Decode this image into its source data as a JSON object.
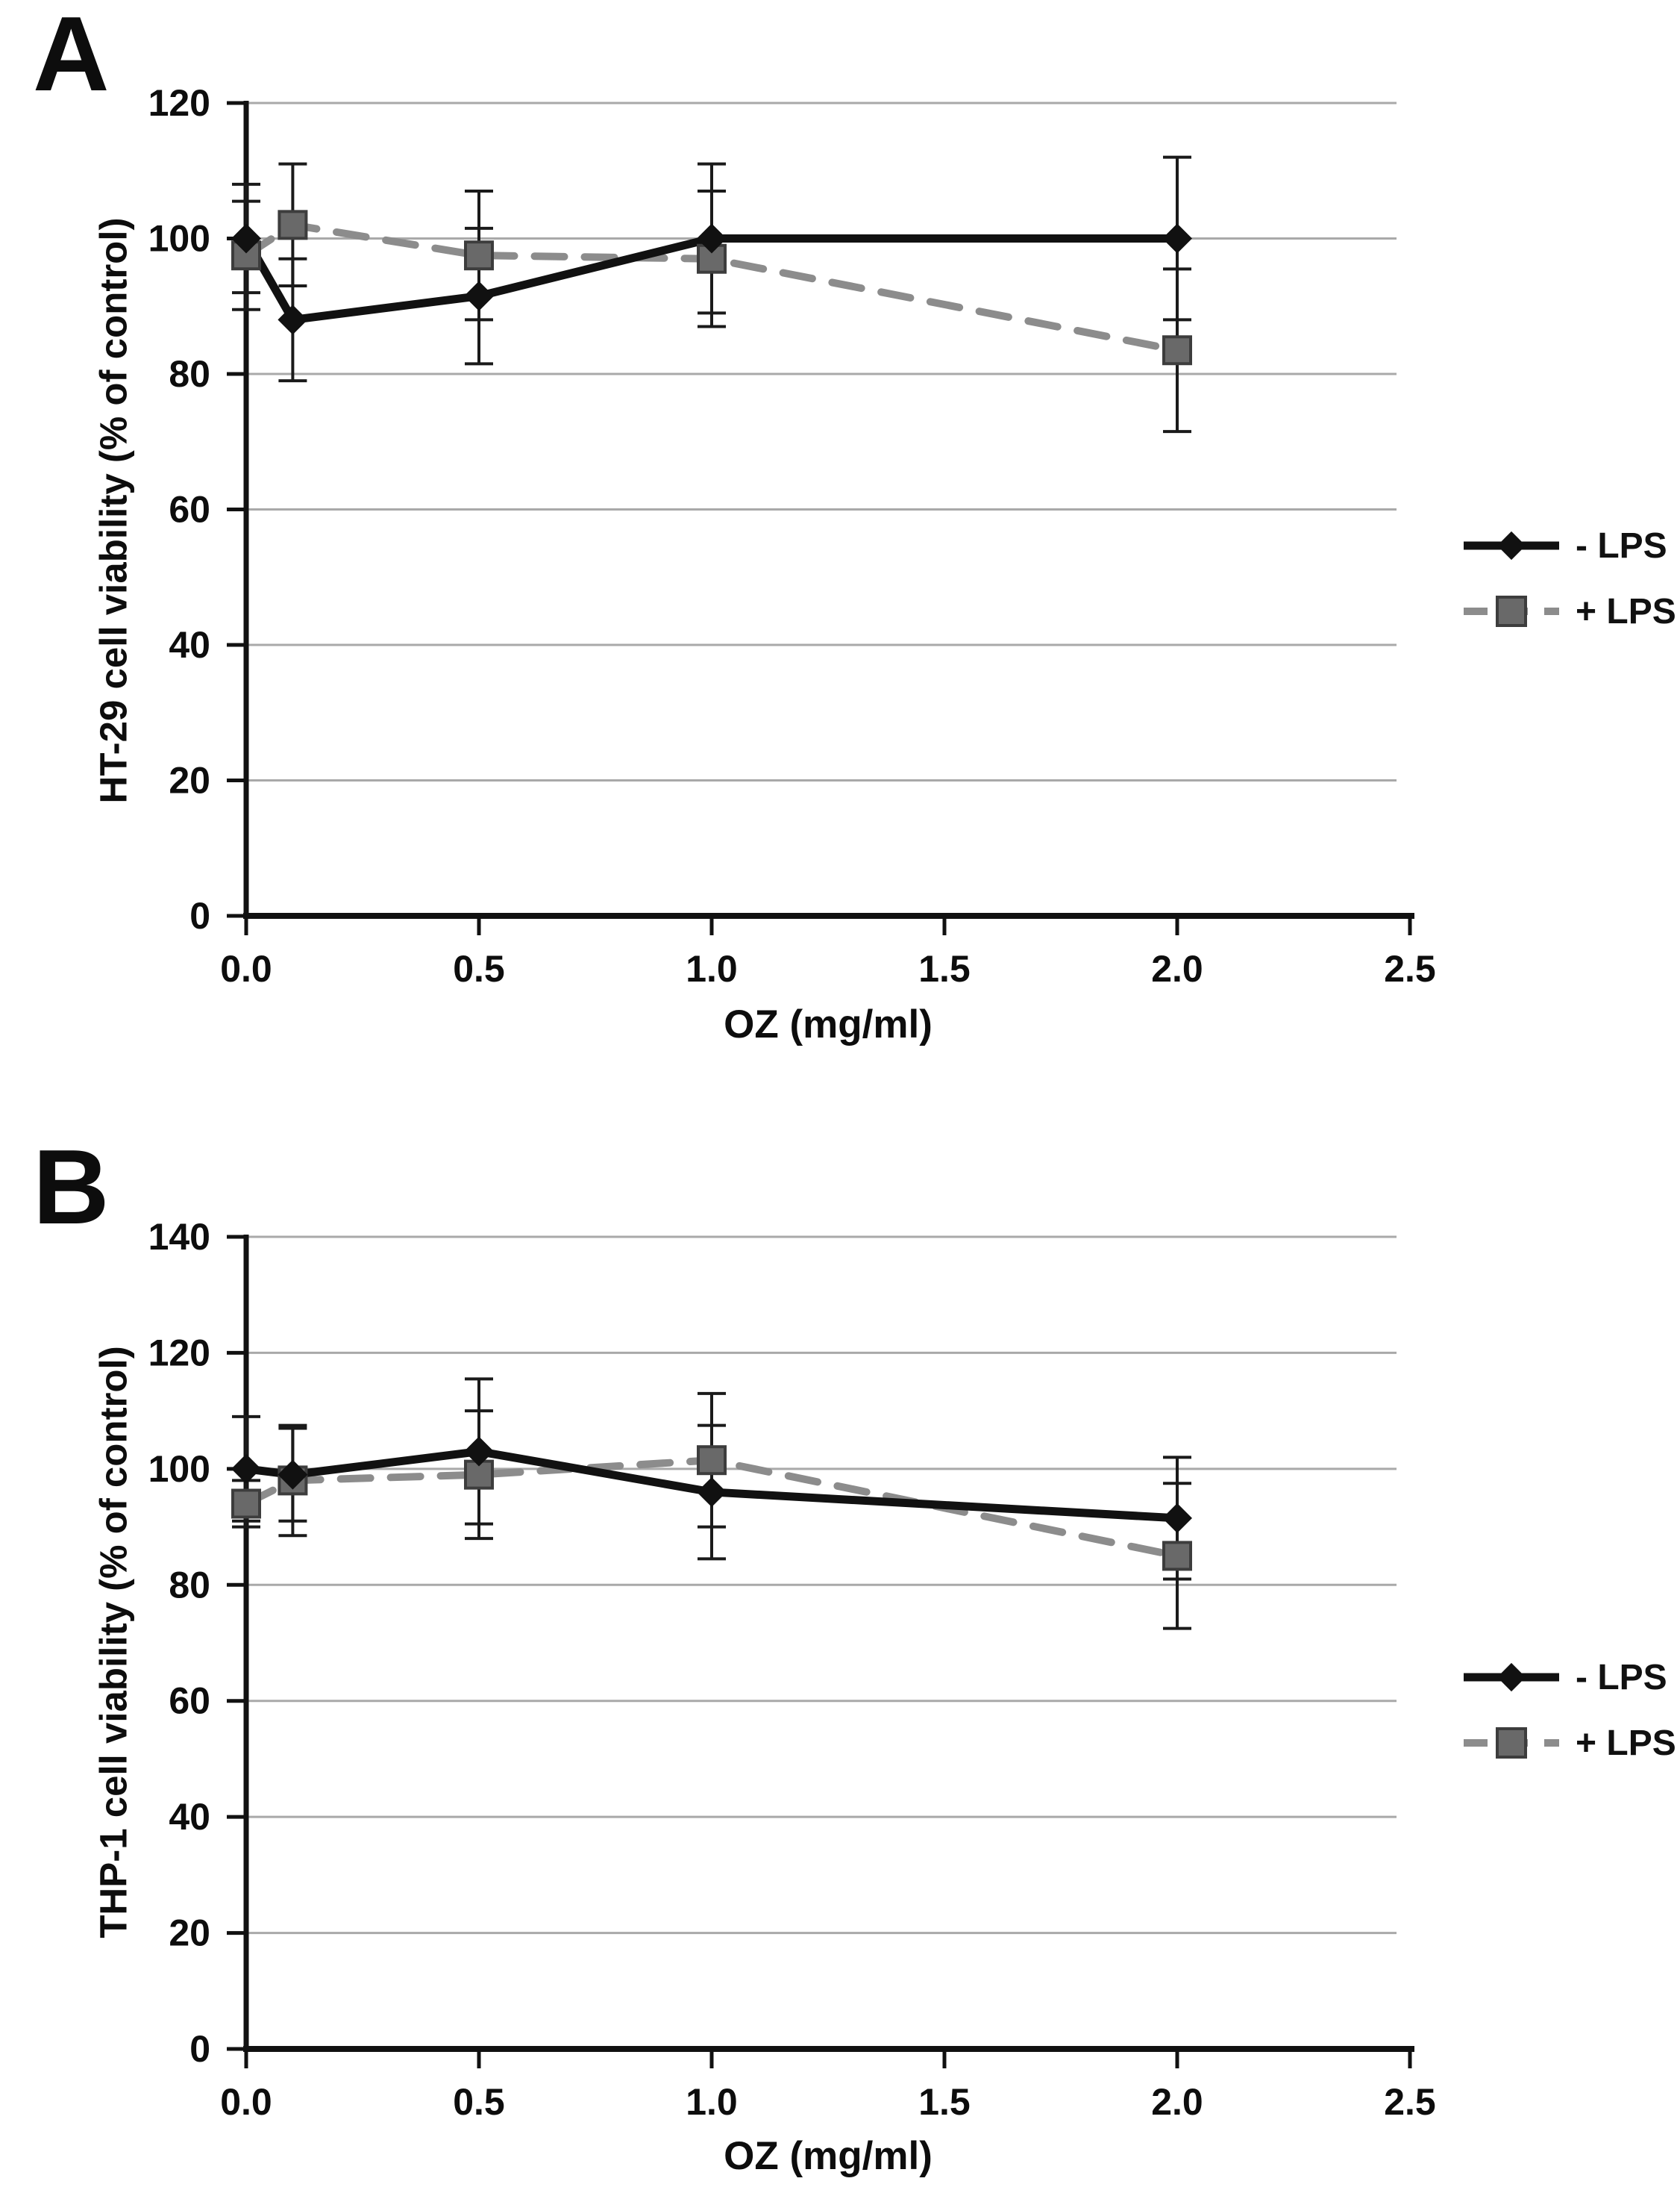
{
  "figure_title": "",
  "style_colors": {
    "axis": "#111111",
    "gridline": "#a9a9a9",
    "error_bar": "#1a1a1a",
    "minus_lps_line": "#111111",
    "plus_lps_line": "#8c8c8c",
    "plus_lps_marker_fill": "#696969",
    "plus_lps_marker_border": "#3d3d3d"
  },
  "chart_data": [
    {
      "type": "line",
      "panel_label": "A",
      "title": "",
      "xlabel": "OZ (mg/ml)",
      "ylabel": "HT-29 cell viability (% of control)",
      "xlim": [
        0,
        2.5
      ],
      "ylim": [
        0,
        120
      ],
      "x_ticks": [
        0,
        0.5,
        1.0,
        1.5,
        2.0,
        2.5
      ],
      "x_tick_labels": [
        "0.0",
        "0.5",
        "1.0",
        "1.5",
        "2.0",
        "2.5"
      ],
      "y_ticks": [
        0,
        20,
        40,
        60,
        80,
        100,
        120
      ],
      "grid": "horizontal gridlines on",
      "legend_position": "right of plot, middle",
      "x": [
        0,
        0.1,
        0.5,
        1.0,
        2.0
      ],
      "series": [
        {
          "name": "- LPS",
          "marker": "diamond",
          "line_style": "solid",
          "color": "#111111",
          "values": [
            100,
            88,
            91.5,
            100,
            100
          ],
          "errors": [
            8,
            9,
            10,
            11,
            12
          ]
        },
        {
          "name": "+ LPS",
          "marker": "square",
          "line_style": "dashed",
          "color": "#8c8c8c",
          "values": [
            97.5,
            102,
            97.5,
            97,
            83.5
          ],
          "errors": [
            8,
            9,
            9.5,
            10,
            12
          ]
        }
      ]
    },
    {
      "type": "line",
      "panel_label": "B",
      "title": "",
      "xlabel": "OZ (mg/ml)",
      "ylabel": "THP-1 cell viability (% of control)",
      "xlim": [
        0,
        2.5
      ],
      "ylim": [
        0,
        140
      ],
      "x_ticks": [
        0,
        0.5,
        1.0,
        1.5,
        2.0,
        2.5
      ],
      "x_tick_labels": [
        "0.0",
        "0.5",
        "1.0",
        "1.5",
        "2.0",
        "2.5"
      ],
      "y_ticks": [
        0,
        20,
        40,
        60,
        80,
        100,
        120,
        140
      ],
      "grid": "horizontal gridlines on",
      "legend_position": "right of plot, lower",
      "x": [
        0,
        0.1,
        0.5,
        1.0,
        2.0
      ],
      "series": [
        {
          "name": "- LPS",
          "marker": "diamond",
          "line_style": "solid",
          "color": "#111111",
          "values": [
            100,
            99,
            103,
            96,
            91.5
          ],
          "errors": [
            9,
            8,
            12.5,
            11.5,
            10.5
          ]
        },
        {
          "name": "+ LPS",
          "marker": "square",
          "line_style": "dashed",
          "color": "#8c8c8c",
          "values": [
            94,
            98,
            99,
            101.5,
            85
          ],
          "errors": [
            4,
            9.5,
            11,
            11.5,
            12.5
          ]
        }
      ]
    }
  ]
}
